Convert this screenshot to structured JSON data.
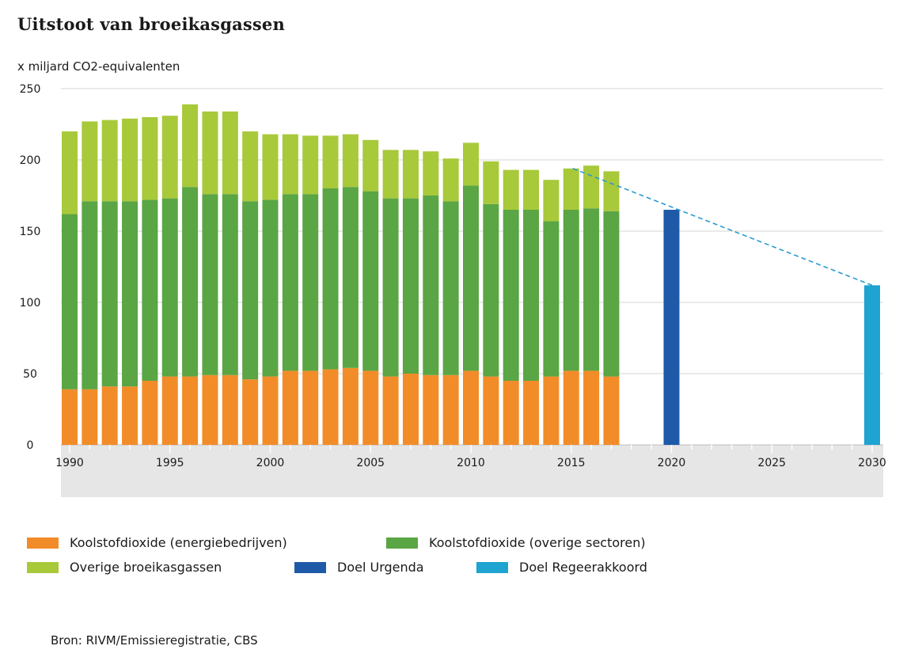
{
  "title": "Uitstoot van broeikasgassen",
  "unit_label": "x miljard CO2-equivalenten",
  "source": "Bron: RIVM/Emissieregistratie, CBS",
  "colors": {
    "energie": "#f28c28",
    "overige_sectoren": "#5aa544",
    "overige_gassen": "#a8c93a",
    "urgenda": "#1f5aa8",
    "regeerakkoord": "#1fa3d0",
    "trend": "#2a9bd0",
    "grid": "#e3e3e3",
    "axis_band": "#e6e6e6"
  },
  "legend": [
    {
      "label": "Koolstofdioxide (energiebedrijven)",
      "color_key": "energie"
    },
    {
      "label": "Koolstofdioxide (overige sectoren)",
      "color_key": "overige_sectoren"
    },
    {
      "label": "Overige broeikasgassen",
      "color_key": "overige_gassen"
    },
    {
      "label": "Doel Urgenda",
      "color_key": "urgenda"
    },
    {
      "label": "Doel Regeerakkoord",
      "color_key": "regeerakkoord"
    }
  ],
  "chart_data": {
    "type": "bar",
    "stacked": true,
    "title": "Uitstoot van broeikasgassen",
    "ylabel": "x miljard CO2-equivalenten",
    "ylim": [
      0,
      250
    ],
    "yticks": [
      0,
      50,
      100,
      150,
      200,
      250
    ],
    "xlim": [
      1990,
      2030
    ],
    "xticks": [
      1990,
      1995,
      2000,
      2005,
      2010,
      2015,
      2020,
      2025,
      2030
    ],
    "grid": true,
    "legend_position": "bottom",
    "categories": [
      1990,
      1991,
      1992,
      1993,
      1994,
      1995,
      1996,
      1997,
      1998,
      1999,
      2000,
      2001,
      2002,
      2003,
      2004,
      2005,
      2006,
      2007,
      2008,
      2009,
      2010,
      2011,
      2012,
      2013,
      2014,
      2015,
      2016,
      2017
    ],
    "series": [
      {
        "name": "Koolstofdioxide (energiebedrijven)",
        "color_key": "energie",
        "values": [
          39,
          39,
          41,
          41,
          45,
          48,
          48,
          49,
          49,
          46,
          48,
          52,
          52,
          53,
          54,
          52,
          48,
          50,
          49,
          49,
          52,
          48,
          45,
          45,
          48,
          52,
          52,
          48
        ]
      },
      {
        "name": "Koolstofdioxide (overige sectoren)",
        "color_key": "overige_sectoren",
        "values": [
          123,
          132,
          130,
          130,
          127,
          125,
          133,
          127,
          127,
          125,
          124,
          124,
          124,
          127,
          127,
          126,
          125,
          123,
          126,
          122,
          130,
          121,
          120,
          120,
          109,
          113,
          114,
          116
        ]
      },
      {
        "name": "Overige broeikasgassen",
        "color_key": "overige_gassen",
        "values": [
          58,
          56,
          57,
          58,
          58,
          58,
          58,
          58,
          58,
          49,
          46,
          42,
          41,
          37,
          37,
          36,
          34,
          34,
          31,
          30,
          30,
          30,
          28,
          28,
          29,
          29,
          30,
          28
        ]
      }
    ],
    "targets": [
      {
        "name": "Doel Urgenda",
        "x": 2020,
        "value": 165,
        "color_key": "urgenda"
      },
      {
        "name": "Doel Regeerakkoord",
        "x": 2030,
        "value": 112,
        "color_key": "regeerakkoord"
      }
    ],
    "trend_line": {
      "from": [
        2015,
        194
      ],
      "to": [
        2030,
        112
      ],
      "style": "dashed"
    }
  }
}
